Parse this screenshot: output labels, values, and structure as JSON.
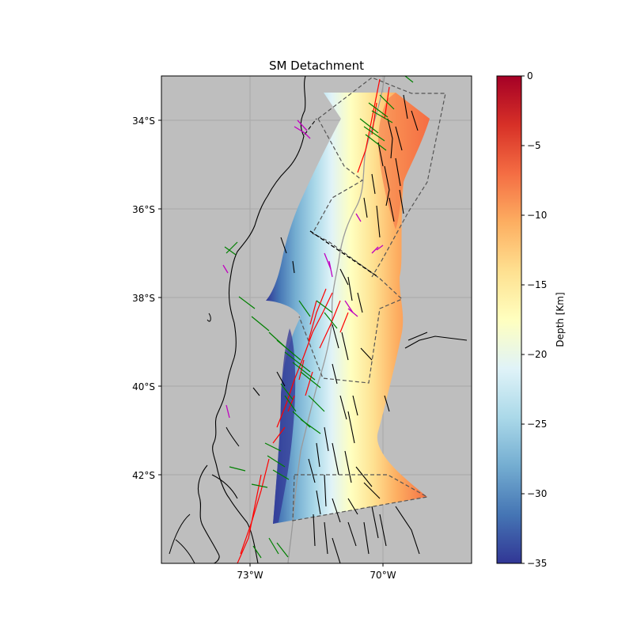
{
  "title": "SM Detachment",
  "map": {
    "background_color": "#bebebe",
    "lon_ticks": [
      "73°W",
      "70°W"
    ],
    "lat_ticks": [
      "34°S",
      "36°S",
      "38°S",
      "40°S",
      "42°S"
    ],
    "gridlines": true,
    "layers": [
      {
        "name": "coastline",
        "color": "#000000"
      },
      {
        "name": "volcanic-arc-boundary",
        "color": "#9a9a9a"
      },
      {
        "name": "faults-red",
        "color": "#ff0000"
      },
      {
        "name": "faults-green",
        "color": "#008000"
      },
      {
        "name": "faults-magenta",
        "color": "#c000c0"
      },
      {
        "name": "faults-black",
        "color": "#000000"
      },
      {
        "name": "region-outlines-dashed",
        "color": "#555555"
      }
    ]
  },
  "colorbar": {
    "label": "Depth [Km]",
    "colormap": "RdYlBu",
    "min": -35,
    "max": 0,
    "ticks": [
      "0",
      "−5",
      "−10",
      "−15",
      "−20",
      "−25",
      "−30",
      "−35"
    ],
    "colors": [
      "#a50026",
      "#d73027",
      "#f46d43",
      "#fdae61",
      "#fee090",
      "#ffffbf",
      "#e0f3f8",
      "#abd9e9",
      "#74add1",
      "#4575b4",
      "#313695"
    ]
  }
}
